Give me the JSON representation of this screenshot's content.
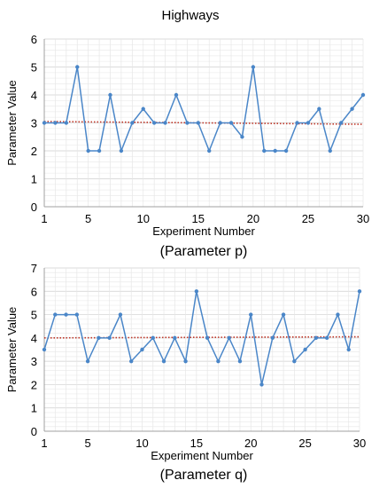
{
  "figure": {
    "title": "Highways"
  },
  "chart_data": [
    {
      "type": "line",
      "caption": "(Parameter  p)",
      "xlabel": "Experiment Number",
      "ylabel": "Parameter Value",
      "xlim": [
        1,
        30
      ],
      "ylim": [
        0,
        6
      ],
      "xticks": [
        1,
        5,
        10,
        15,
        20,
        25,
        30
      ],
      "yticks": [
        0,
        1,
        2,
        3,
        4,
        5,
        6
      ],
      "grid": true,
      "x": [
        1,
        2,
        3,
        4,
        5,
        6,
        7,
        8,
        9,
        10,
        11,
        12,
        13,
        14,
        15,
        16,
        17,
        18,
        19,
        20,
        21,
        22,
        23,
        24,
        25,
        26,
        27,
        28,
        29,
        30
      ],
      "series": [
        {
          "values": [
            3,
            3,
            3,
            5,
            2,
            2,
            4,
            2,
            3,
            3.5,
            3,
            3,
            4,
            3,
            3,
            2,
            3,
            3,
            2.5,
            5,
            2,
            2,
            2,
            3,
            3,
            3.5,
            2,
            3,
            3.5,
            4
          ],
          "color": "#4a86c8",
          "style": "solid-markers"
        }
      ],
      "trend": {
        "start": 3.05,
        "end": 2.95,
        "color": "#c0392b",
        "style": "dotted"
      }
    },
    {
      "type": "line",
      "caption": "(Parameter  q)",
      "xlabel": "Experiment Number",
      "ylabel": "Parameter Value",
      "xlim": [
        1,
        30
      ],
      "ylim": [
        0,
        7
      ],
      "xticks": [
        1,
        5,
        10,
        15,
        20,
        25,
        30
      ],
      "yticks": [
        0,
        1,
        2,
        3,
        4,
        5,
        6,
        7
      ],
      "grid": true,
      "x": [
        1,
        2,
        3,
        4,
        5,
        6,
        7,
        8,
        9,
        10,
        11,
        12,
        13,
        14,
        15,
        16,
        17,
        18,
        19,
        20,
        21,
        22,
        23,
        24,
        25,
        26,
        27,
        28,
        29,
        30
      ],
      "series": [
        {
          "values": [
            3.5,
            5,
            5,
            5,
            3,
            4,
            4,
            5,
            3,
            3.5,
            4,
            3,
            4,
            3,
            6,
            4,
            3,
            4,
            3,
            5,
            2,
            4,
            5,
            3,
            3.5,
            4,
            4,
            5,
            3.5,
            6
          ],
          "color": "#4a86c8",
          "style": "solid-markers"
        }
      ],
      "trend": {
        "start": 4.0,
        "end": 4.05,
        "color": "#c0392b",
        "style": "dotted"
      }
    }
  ]
}
